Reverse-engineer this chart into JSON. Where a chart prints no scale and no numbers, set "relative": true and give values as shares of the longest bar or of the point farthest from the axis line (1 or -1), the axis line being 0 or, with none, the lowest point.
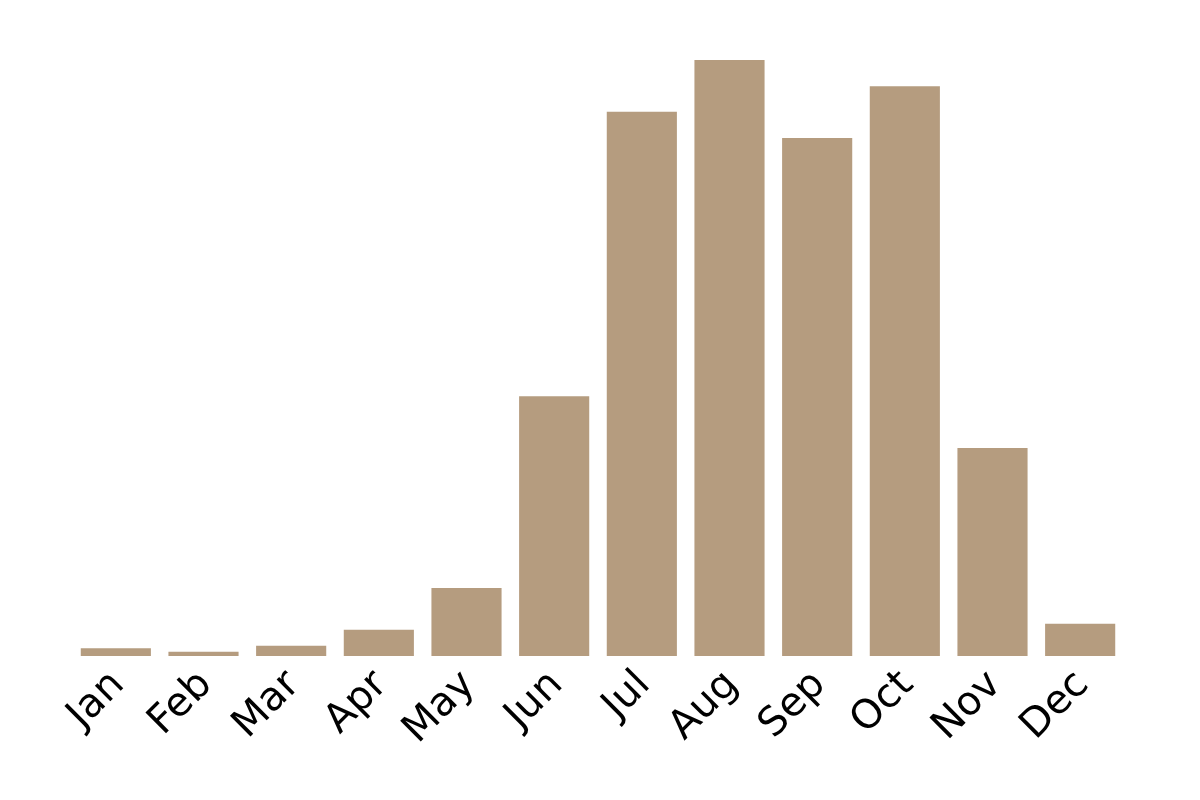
{
  "chart_data": {
    "type": "bar",
    "relative": true,
    "categories": [
      "Jan",
      "Feb",
      "Mar",
      "Apr",
      "May",
      "Jun",
      "Jul",
      "Aug",
      "Sep",
      "Oct",
      "Nov",
      "Dec"
    ],
    "series": [
      {
        "color": "#b59c7f",
        "values": [
          0.013,
          0.007,
          0.017,
          0.044,
          0.114,
          0.436,
          0.913,
          1,
          0.869,
          0.956,
          0.349,
          0.054
        ]
      }
    ]
  }
}
